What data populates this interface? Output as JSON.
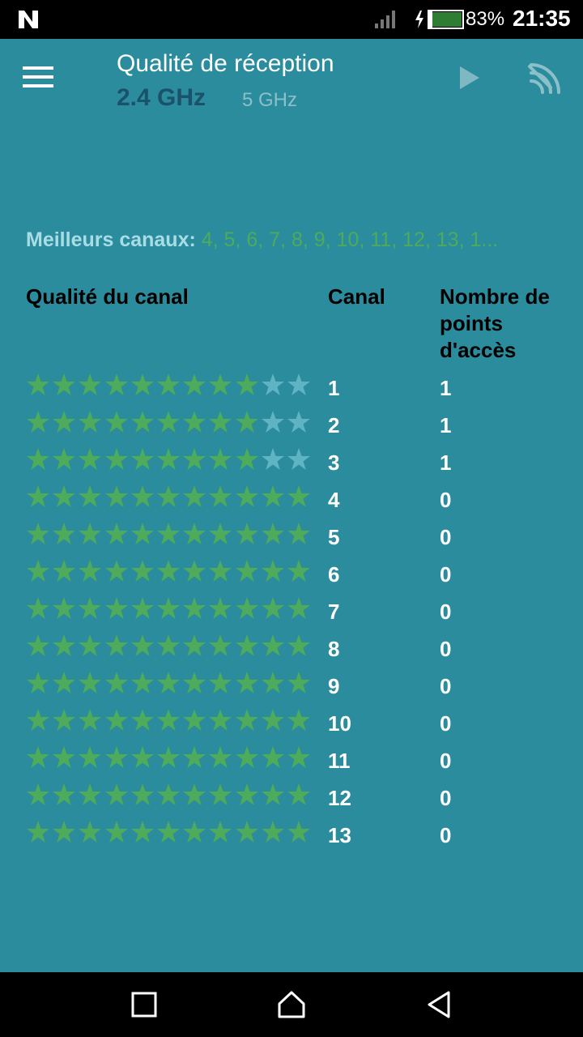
{
  "status_bar": {
    "battery_percent": "83%",
    "time": "21:35",
    "icons": [
      "n-notification-icon",
      "signal-icon",
      "battery-charging-icon"
    ]
  },
  "app_bar": {
    "title": "Qualité de réception",
    "bands": [
      "2.4 GHz",
      "5 GHz"
    ],
    "selected_band": "2.4 GHz",
    "icons": [
      "menu-icon",
      "play-icon",
      "wifi-scan-icon"
    ]
  },
  "best_channels": {
    "label": "Meilleurs canaux:",
    "value": "4, 5, 6, 7, 8, 9, 10, 11, 12, 13, 1..."
  },
  "table": {
    "headers": {
      "quality": "Qualité du canal",
      "channel": "Canal",
      "access_points": "Nombre de points d'accès"
    },
    "max_stars": 11,
    "rows": [
      {
        "channel": "1",
        "access_points": "1",
        "stars": 9
      },
      {
        "channel": "2",
        "access_points": "1",
        "stars": 9
      },
      {
        "channel": "3",
        "access_points": "1",
        "stars": 9
      },
      {
        "channel": "4",
        "access_points": "0",
        "stars": 11
      },
      {
        "channel": "5",
        "access_points": "0",
        "stars": 11
      },
      {
        "channel": "6",
        "access_points": "0",
        "stars": 11
      },
      {
        "channel": "7",
        "access_points": "0",
        "stars": 11
      },
      {
        "channel": "8",
        "access_points": "0",
        "stars": 11
      },
      {
        "channel": "9",
        "access_points": "0",
        "stars": 11
      },
      {
        "channel": "10",
        "access_points": "0",
        "stars": 11
      },
      {
        "channel": "11",
        "access_points": "0",
        "stars": 11
      },
      {
        "channel": "12",
        "access_points": "0",
        "stars": 11
      },
      {
        "channel": "13",
        "access_points": "0",
        "stars": 11
      }
    ]
  },
  "colors": {
    "background": "#2a8c9c",
    "star_on": "#4dab5b",
    "star_off": "#5fb3c3",
    "band_selected": "#1b5269",
    "band_unselected": "#8cc0c8",
    "best_label": "#a9dde6"
  },
  "nav_bar": {
    "icons": [
      "recent-apps-icon",
      "home-icon",
      "back-icon"
    ]
  }
}
